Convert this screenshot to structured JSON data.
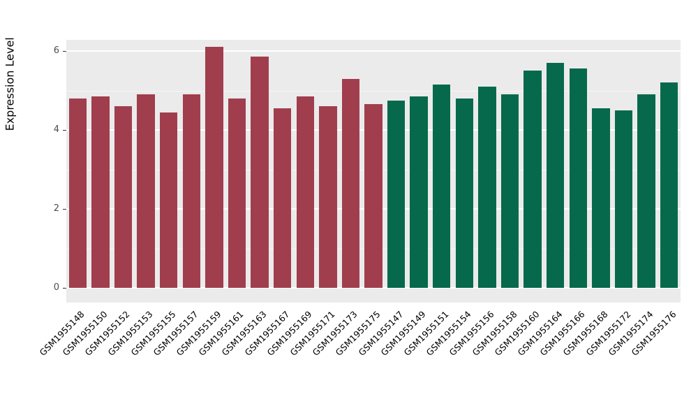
{
  "chart_data": {
    "type": "bar",
    "title": "",
    "xlabel": "",
    "ylabel": "Expression Level",
    "ylim": [
      0,
      6.6
    ],
    "yticks": [
      0,
      2,
      4,
      6
    ],
    "minor_ticks": [
      1,
      3,
      5
    ],
    "grid": true,
    "legend_position": "none",
    "panel_background": "#EBEBEB",
    "gridline_color": "#FFFFFF",
    "group_colors": {
      "groupA": "#A03E4E",
      "groupB": "#07694C"
    },
    "bars": [
      {
        "label": "GSM1955148",
        "value": 4.8,
        "group": "groupA"
      },
      {
        "label": "GSM1955150",
        "value": 4.85,
        "group": "groupA"
      },
      {
        "label": "GSM1955152",
        "value": 4.6,
        "group": "groupA"
      },
      {
        "label": "GSM1955153",
        "value": 4.9,
        "group": "groupA"
      },
      {
        "label": "GSM1955155",
        "value": 4.45,
        "group": "groupA"
      },
      {
        "label": "GSM1955157",
        "value": 4.9,
        "group": "groupA"
      },
      {
        "label": "GSM1955159",
        "value": 6.1,
        "group": "groupA"
      },
      {
        "label": "GSM1955161",
        "value": 4.8,
        "group": "groupA"
      },
      {
        "label": "GSM1955163",
        "value": 5.85,
        "group": "groupA"
      },
      {
        "label": "GSM1955167",
        "value": 4.55,
        "group": "groupA"
      },
      {
        "label": "GSM1955169",
        "value": 4.85,
        "group": "groupA"
      },
      {
        "label": "GSM1955171",
        "value": 4.6,
        "group": "groupA"
      },
      {
        "label": "GSM1955173",
        "value": 5.3,
        "group": "groupA"
      },
      {
        "label": "GSM1955175",
        "value": 4.65,
        "group": "groupA"
      },
      {
        "label": "GSM1955147",
        "value": 4.75,
        "group": "groupB"
      },
      {
        "label": "GSM1955149",
        "value": 4.85,
        "group": "groupB"
      },
      {
        "label": "GSM1955151",
        "value": 5.15,
        "group": "groupB"
      },
      {
        "label": "GSM1955154",
        "value": 4.8,
        "group": "groupB"
      },
      {
        "label": "GSM1955156",
        "value": 5.1,
        "group": "groupB"
      },
      {
        "label": "GSM1955158",
        "value": 4.9,
        "group": "groupB"
      },
      {
        "label": "GSM1955160",
        "value": 5.5,
        "group": "groupB"
      },
      {
        "label": "GSM1955164",
        "value": 5.7,
        "group": "groupB"
      },
      {
        "label": "GSM1955166",
        "value": 5.55,
        "group": "groupB"
      },
      {
        "label": "GSM1955168",
        "value": 4.55,
        "group": "groupB"
      },
      {
        "label": "GSM1955172",
        "value": 4.5,
        "group": "groupB"
      },
      {
        "label": "GSM1955174",
        "value": 4.9,
        "group": "groupB"
      },
      {
        "label": "GSM1955176",
        "value": 5.2,
        "group": "groupB"
      }
    ]
  }
}
